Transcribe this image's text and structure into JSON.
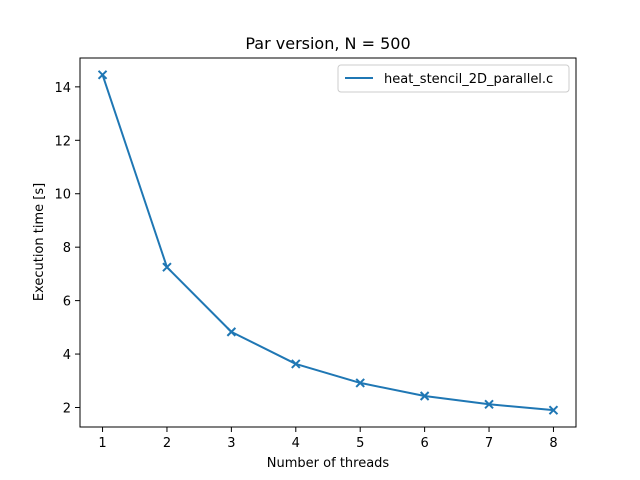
{
  "chart_data": {
    "type": "line",
    "title": "Par version, N = 500",
    "xlabel": "Number of threads",
    "ylabel": "Execution time [s]",
    "x": [
      1,
      2,
      3,
      4,
      5,
      6,
      7,
      8
    ],
    "series": [
      {
        "name": "heat_stencil_2D_parallel.c",
        "values": [
          14.45,
          7.25,
          4.83,
          3.63,
          2.92,
          2.43,
          2.12,
          1.9
        ],
        "color": "#1f77b4",
        "marker": "x"
      }
    ],
    "xticks": [
      1,
      2,
      3,
      4,
      5,
      6,
      7,
      8
    ],
    "yticks": [
      2,
      4,
      6,
      8,
      10,
      12,
      14
    ],
    "xlim": [
      0.65,
      8.35
    ],
    "ylim": [
      1.27,
      15.08
    ],
    "grid": false,
    "legend_position": "top-right"
  }
}
